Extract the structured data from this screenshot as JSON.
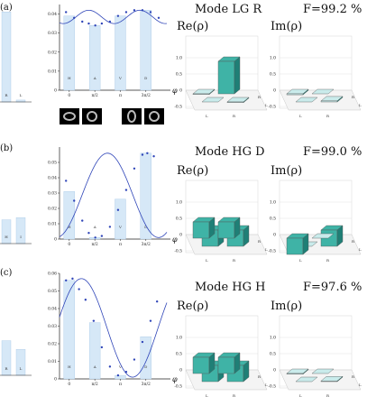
{
  "colors": {
    "bar": "#d6e8f7",
    "bar_edge": "#a9c9e6",
    "curve": "#2f45b8",
    "teal": "#3fb3a6",
    "teal_dark": "#1f7f76",
    "teal_light": "#c9ebeb",
    "axis": "#222222"
  },
  "rows": [
    {
      "panel_label": "(a)",
      "mode_label": "Mode LG R",
      "fidelity": "F=99.2 %",
      "re_label": "Re(ρ)",
      "im_label": "Im(ρ)"
    },
    {
      "panel_label": "(b)",
      "mode_label": "Mode HG D",
      "fidelity": "F=99.0 %",
      "re_label": "Re(ρ)",
      "im_label": "Im(ρ)"
    },
    {
      "panel_label": "(c)",
      "mode_label": "Mode HG H",
      "fidelity": "F=97.6 %",
      "re_label": "Re(ρ)",
      "im_label": "Im(ρ)"
    }
  ],
  "phi_label": "φ",
  "chart_data": [
    {
      "type": "line",
      "panel": "(a)",
      "x_ticks": [
        "0",
        "π/2",
        "π",
        "3π/2"
      ],
      "ylim": [
        0,
        0.045
      ],
      "y_ticks": [
        "0",
        "0.01",
        "0.02",
        "0.03",
        "0.04"
      ],
      "bars": [
        {
          "x": 0,
          "label": "H",
          "value": 0.039
        },
        {
          "x": 1.5708,
          "label": "A",
          "value": 0.034
        },
        {
          "x": 3.1416,
          "label": "V",
          "value": 0.039
        },
        {
          "x": 4.7124,
          "label": "D",
          "value": 0.042
        }
      ],
      "curve": {
        "mean": 0.0385,
        "amp": 0.0035,
        "freq": 2,
        "phase": 2.4
      },
      "points": [
        {
          "x": -0.2,
          "y": 0.041
        },
        {
          "x": 0.3,
          "y": 0.038
        },
        {
          "x": 0.8,
          "y": 0.036
        },
        {
          "x": 1.2,
          "y": 0.035
        },
        {
          "x": 1.6,
          "y": 0.034
        },
        {
          "x": 2.0,
          "y": 0.035
        },
        {
          "x": 2.5,
          "y": 0.036
        },
        {
          "x": 3.0,
          "y": 0.039
        },
        {
          "x": 3.5,
          "y": 0.041
        },
        {
          "x": 4.0,
          "y": 0.042
        },
        {
          "x": 4.5,
          "y": 0.042
        },
        {
          "x": 5.0,
          "y": 0.041
        },
        {
          "x": 5.5,
          "y": 0.038
        }
      ],
      "side_bars": [
        {
          "label": "R",
          "value": 0.95
        },
        {
          "label": "L",
          "value": 0.02
        }
      ]
    },
    {
      "type": "line",
      "panel": "(b)",
      "x_ticks": [
        "0",
        "π/2",
        "π",
        "3π/2"
      ],
      "ylim": [
        0,
        0.06
      ],
      "y_ticks": [
        "0",
        "0.01",
        "0.02",
        "0.03",
        "0.04",
        "0.05"
      ],
      "bars": [
        {
          "x": 0,
          "label": "H",
          "value": 0.031
        },
        {
          "x": 1.5708,
          "label": "A",
          "value": 0.001
        },
        {
          "x": 3.1416,
          "label": "V",
          "value": 0.026
        },
        {
          "x": 4.7124,
          "label": "D",
          "value": 0.056
        }
      ],
      "curve": {
        "mean": 0.0285,
        "amp": 0.0275,
        "freq": 1,
        "phase": 2.35
      },
      "points": [
        {
          "x": -0.2,
          "y": 0.038
        },
        {
          "x": 0.3,
          "y": 0.025
        },
        {
          "x": 0.8,
          "y": 0.012
        },
        {
          "x": 1.2,
          "y": 0.004
        },
        {
          "x": 1.6,
          "y": 0.001
        },
        {
          "x": 2.0,
          "y": 0.002
        },
        {
          "x": 2.5,
          "y": 0.008
        },
        {
          "x": 3.0,
          "y": 0.019
        },
        {
          "x": 3.5,
          "y": 0.032
        },
        {
          "x": 4.0,
          "y": 0.046
        },
        {
          "x": 4.5,
          "y": 0.055
        },
        {
          "x": 4.8,
          "y": 0.056
        },
        {
          "x": 5.2,
          "y": 0.054
        }
      ],
      "side_bars": [
        {
          "label": "H",
          "value": 0.33
        },
        {
          "label": "I",
          "value": 0.36
        }
      ]
    },
    {
      "type": "line",
      "panel": "(c)",
      "x_ticks": [
        "0",
        "π/2",
        "π",
        "3π/2"
      ],
      "ylim": [
        0,
        0.06
      ],
      "y_ticks": [
        "0",
        "0.01",
        "0.02",
        "0.03",
        "0.04",
        "0.05",
        "0.06"
      ],
      "bars": [
        {
          "x": 0,
          "label": "H",
          "value": 0.056
        },
        {
          "x": 1.5708,
          "label": "A",
          "value": 0.032
        },
        {
          "x": 3.1416,
          "label": "V",
          "value": 0.002
        },
        {
          "x": 4.7124,
          "label": "D",
          "value": 0.024
        }
      ],
      "curve": {
        "mean": 0.029,
        "amp": 0.028,
        "freq": 1,
        "phase": 0.75
      },
      "points": [
        {
          "x": -0.2,
          "y": 0.056
        },
        {
          "x": 0.2,
          "y": 0.057
        },
        {
          "x": 0.6,
          "y": 0.051
        },
        {
          "x": 1.0,
          "y": 0.045
        },
        {
          "x": 1.5,
          "y": 0.033
        },
        {
          "x": 2.0,
          "y": 0.018
        },
        {
          "x": 2.5,
          "y": 0.007
        },
        {
          "x": 3.0,
          "y": 0.002
        },
        {
          "x": 3.5,
          "y": 0.004
        },
        {
          "x": 4.0,
          "y": 0.011
        },
        {
          "x": 4.5,
          "y": 0.021
        },
        {
          "x": 5.0,
          "y": 0.033
        },
        {
          "x": 5.4,
          "y": 0.044
        }
      ],
      "side_bars": [
        {
          "label": "R",
          "value": 0.4
        },
        {
          "label": "L",
          "value": 0.3
        }
      ]
    }
  ],
  "matrices": [
    {
      "re": [
        [
          0.0,
          -0.02
        ],
        [
          -0.02,
          1.0
        ]
      ],
      "im": [
        [
          0.0,
          0.03
        ],
        [
          -0.03,
          0.0
        ]
      ]
    },
    {
      "re": [
        [
          0.5,
          0.5
        ],
        [
          0.5,
          0.5
        ]
      ],
      "im": [
        [
          0.0,
          0.5
        ],
        [
          -0.5,
          0.0
        ]
      ]
    },
    {
      "re": [
        [
          0.5,
          0.5
        ],
        [
          0.5,
          0.5
        ]
      ],
      "im": [
        [
          0.0,
          0.02
        ],
        [
          -0.02,
          0.0
        ]
      ]
    }
  ],
  "matrix_axis": {
    "z_ticks": [
      "1.0",
      "0.5",
      "0",
      "-0.5"
    ],
    "basis": [
      "L",
      "R"
    ]
  }
}
